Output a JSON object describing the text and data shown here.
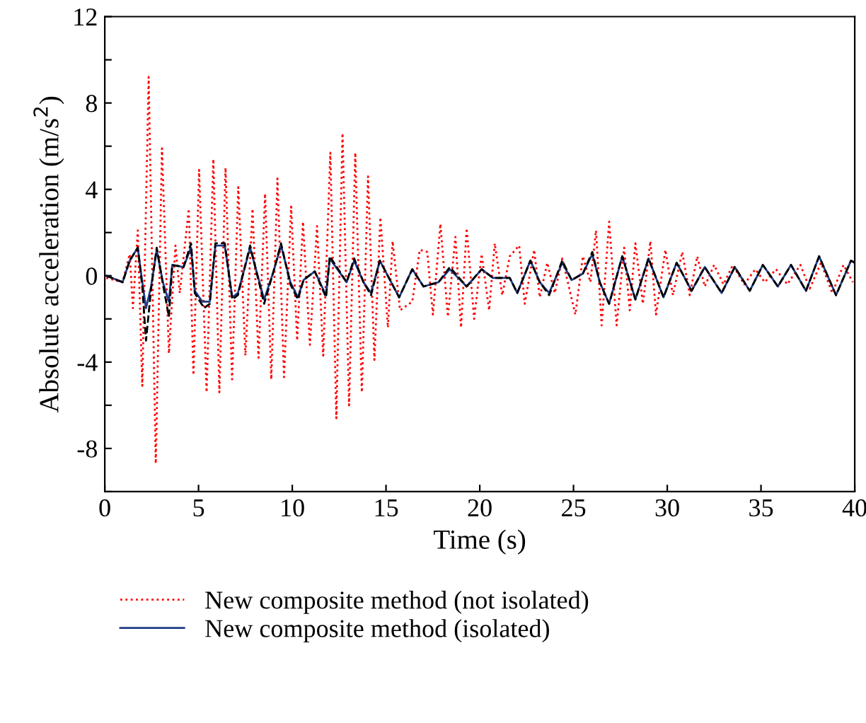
{
  "chart_data": {
    "type": "line",
    "xlabel": "Time (s)",
    "ylabel": "Absolute acceleration (m/s$^{2}$)",
    "xlim": [
      0,
      40
    ],
    "xticks": [
      0,
      5,
      10,
      15,
      20,
      25,
      30,
      35,
      40
    ],
    "ylim": [
      -10,
      12
    ],
    "yticks": [
      {
        "value": -10,
        "label": null
      },
      -8,
      {
        "value": -6,
        "label": null
      },
      -4,
      {
        "value": -2,
        "label": null
      },
      0,
      {
        "value": 2,
        "label": null
      },
      4,
      {
        "value": 6,
        "label": null
      },
      8,
      {
        "value": 10,
        "label": null
      },
      12
    ],
    "grid": false,
    "legend": "bottom",
    "marker": "none",
    "series": [
      {
        "name": "New composite method (not isolated)",
        "color": "#ff0000",
        "line_style": "dotted",
        "x": [
          0.08,
          0.95,
          1.33,
          1.5,
          1.76,
          2.0,
          2.34,
          2.72,
          3.05,
          3.42,
          3.77,
          4.0,
          4.48,
          4.73,
          5.03,
          5.43,
          5.79,
          6.11,
          6.44,
          6.79,
          7.12,
          7.5,
          7.88,
          8.2,
          8.55,
          8.88,
          9.21,
          9.56,
          9.94,
          10.26,
          10.57,
          10.94,
          11.32,
          11.65,
          12.03,
          12.35,
          12.68,
          13.03,
          13.36,
          13.71,
          14.04,
          14.38,
          14.7,
          15.1,
          15.35,
          15.75,
          16.4,
          16.8,
          17.2,
          17.5,
          17.9,
          18.3,
          18.7,
          19.0,
          19.3,
          19.7,
          20.1,
          20.5,
          20.8,
          21.2,
          21.6,
          22.1,
          22.4,
          22.9,
          23.2,
          23.6,
          24.0,
          24.4,
          25.1,
          25.5,
          25.9,
          26.2,
          26.5,
          26.9,
          27.3,
          27.7,
          28.0,
          28.3,
          28.7,
          29.1,
          29.4,
          29.9,
          30.3,
          30.8,
          31.2,
          31.6,
          32.0,
          32.5,
          33.0,
          33.5,
          34.1,
          34.7,
          35.2,
          35.8,
          36.4,
          37.1,
          37.6,
          38.2,
          38.8,
          39.4,
          39.9
        ],
        "values": [
          -0.1,
          -0.3,
          1.0,
          -1.5,
          2.1,
          -5.1,
          9.2,
          -8.7,
          5.9,
          -3.6,
          1.4,
          -0.8,
          3.1,
          -4.6,
          4.9,
          -5.4,
          5.4,
          -5.4,
          5.0,
          -4.8,
          4.1,
          -3.7,
          3.1,
          -3.8,
          3.8,
          -4.8,
          4.5,
          -4.7,
          3.2,
          -3.0,
          2.5,
          -3.2,
          2.3,
          -3.7,
          5.7,
          -6.6,
          6.6,
          -6.0,
          5.7,
          -5.4,
          4.6,
          -3.9,
          2.7,
          -2.4,
          1.6,
          -1.6,
          -1.2,
          1.2,
          1.1,
          -1.8,
          2.4,
          -1.9,
          1.8,
          -2.4,
          2.2,
          -2.0,
          1.0,
          -1.6,
          1.5,
          -0.9,
          0.9,
          1.4,
          -1.3,
          1.2,
          -1.0,
          0.6,
          -0.8,
          0.8,
          -1.8,
          0.9,
          -0.3,
          2.1,
          -2.3,
          2.5,
          -2.3,
          1.3,
          -1.6,
          1.5,
          -1.3,
          1.6,
          -1.8,
          1.2,
          -0.9,
          1.1,
          -0.9,
          0.9,
          -0.5,
          0.5,
          -0.4,
          0.5,
          -0.4,
          0.3,
          -0.3,
          0.3,
          -0.4,
          0.5,
          -0.6,
          0.6,
          -0.8,
          0.5,
          -0.3
        ]
      },
      {
        "name": "New composite method (isolated)",
        "color": "#1f3c88",
        "line_style": "solid",
        "x": [
          0.08,
          0.95,
          1.33,
          1.76,
          2.0,
          2.2,
          2.47,
          2.77,
          3.1,
          3.42,
          3.6,
          4.2,
          4.6,
          4.8,
          5.2,
          5.6,
          5.9,
          6.4,
          6.8,
          7.1,
          7.75,
          8.5,
          9.0,
          9.4,
          9.9,
          10.3,
          10.6,
          11.2,
          11.8,
          12.0,
          12.9,
          13.3,
          13.8,
          14.2,
          14.67,
          15.7,
          16.4,
          17.0,
          17.8,
          18.4,
          19.3,
          20.1,
          20.7,
          21.6,
          22.0,
          22.7,
          23.2,
          23.7,
          24.4,
          24.9,
          25.5,
          26.0,
          26.4,
          26.9,
          27.6,
          28.3,
          29.0,
          29.8,
          30.5,
          31.3,
          32.0,
          32.9,
          33.6,
          34.4,
          35.1,
          35.9,
          36.6,
          37.4,
          38.1,
          39.0,
          39.8,
          40.0
        ],
        "values": [
          0.0,
          -0.3,
          0.7,
          1.3,
          -0.3,
          -1.5,
          -0.5,
          1.2,
          -0.3,
          -1.2,
          0.5,
          0.4,
          1.3,
          -0.7,
          -1.2,
          -1.2,
          1.4,
          1.4,
          -1.0,
          -0.8,
          1.3,
          -1.1,
          0.2,
          1.4,
          -0.3,
          -1.0,
          -0.2,
          0.2,
          -0.9,
          0.8,
          -0.3,
          0.7,
          -0.3,
          -0.8,
          0.7,
          -1.0,
          0.3,
          -0.5,
          -0.3,
          0.3,
          -0.5,
          0.3,
          -0.1,
          -0.1,
          -0.8,
          0.7,
          -0.3,
          -0.8,
          0.6,
          -0.2,
          0.1,
          1.0,
          -0.3,
          -1.3,
          0.9,
          -1.1,
          0.8,
          -1.0,
          0.6,
          -0.7,
          0.4,
          -0.8,
          0.4,
          -0.7,
          0.5,
          -0.5,
          0.5,
          -0.7,
          0.9,
          -0.9,
          0.7,
          0.6
        ]
      },
      {
        "color": "#000000",
        "line_style": "dashed",
        "x": [
          0.08,
          0.95,
          1.33,
          1.76,
          2.0,
          2.2,
          2.47,
          2.77,
          3.1,
          3.42,
          3.6,
          4.2,
          4.6,
          4.8,
          5.3,
          5.6,
          5.9,
          6.4,
          6.8,
          7.1,
          7.75,
          8.5,
          9.0,
          9.4,
          9.9,
          10.3,
          10.6,
          11.2,
          11.8,
          12.0,
          12.9,
          13.3,
          13.8,
          14.2,
          14.67,
          15.7,
          16.4,
          17.0,
          17.8,
          18.4,
          19.3,
          20.1,
          20.7,
          21.6,
          22.0,
          22.7,
          23.2,
          23.7,
          24.4,
          24.9,
          25.5,
          26.0,
          26.4,
          26.9,
          27.6,
          28.3,
          29.0,
          29.8,
          30.5,
          31.3,
          32.0,
          32.9,
          33.6,
          34.4,
          35.1,
          35.9,
          36.6,
          37.4,
          38.1,
          39.0,
          39.8,
          40.0
        ],
        "values": [
          0.0,
          -0.3,
          0.7,
          1.3,
          -0.5,
          -3.0,
          -0.6,
          1.3,
          -0.4,
          -1.9,
          0.5,
          0.4,
          1.5,
          -0.8,
          -1.5,
          -1.3,
          1.5,
          1.5,
          -1.1,
          -0.9,
          1.4,
          -1.3,
          0.2,
          1.5,
          -0.4,
          -1.1,
          -0.2,
          0.2,
          -1.0,
          0.9,
          -0.3,
          0.8,
          -0.3,
          -0.9,
          0.7,
          -1.0,
          0.3,
          -0.5,
          -0.3,
          0.4,
          -0.5,
          0.3,
          -0.1,
          -0.1,
          -0.8,
          0.7,
          -0.3,
          -0.9,
          0.7,
          -0.2,
          0.1,
          1.1,
          -0.3,
          -1.3,
          0.9,
          -1.1,
          0.8,
          -1.0,
          0.6,
          -0.7,
          0.4,
          -0.8,
          0.4,
          -0.7,
          0.5,
          -0.5,
          0.5,
          -0.7,
          0.9,
          -0.9,
          0.7,
          0.6
        ]
      }
    ]
  }
}
